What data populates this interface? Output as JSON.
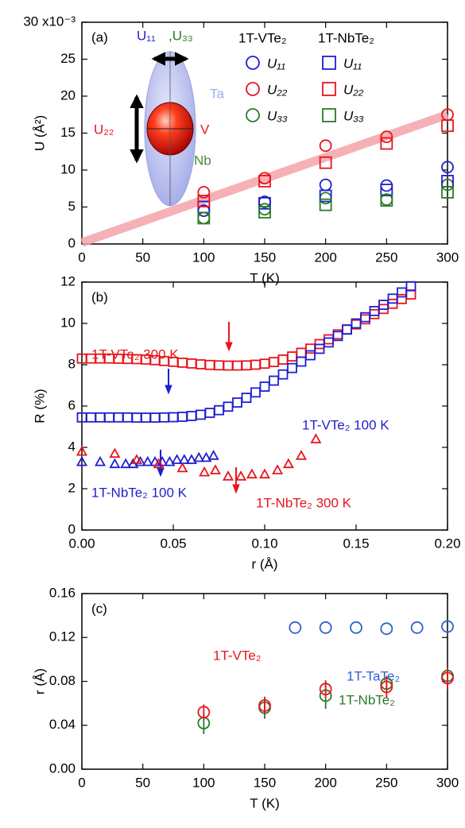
{
  "chart_data": [
    {
      "type": "scatter",
      "panel_label": "(a)",
      "xlabel": "T (K)",
      "ylabel": "U (Å²)",
      "xlim": [
        0,
        300
      ],
      "xticks": [
        0,
        50,
        100,
        150,
        200,
        250,
        300
      ],
      "ylim": [
        0,
        30
      ],
      "yticks": [
        0,
        5,
        10,
        15,
        20,
        25,
        {
          "value": 30,
          "label": "30 x10⁻³"
        }
      ],
      "legend_groups": [
        "1T-VTe₂",
        "1T-NbTe₂"
      ],
      "fit_line": {
        "x": [
          0,
          300
        ],
        "values": [
          0.2,
          17.5
        ],
        "color": "#f4a3aa"
      },
      "annotations": [
        {
          "text": "U₁₁",
          "color": "#1f1fd0"
        },
        {
          "text": ",U₃₃",
          "color": "#2a7a2a"
        },
        {
          "text": "U₂₂",
          "color": "#e8141c"
        },
        {
          "text": "Ta",
          "color": "#9aaee0"
        },
        {
          "text": "V",
          "color": "#e8141c"
        },
        {
          "text": "Nb",
          "color": "#4a8a3a"
        }
      ],
      "series": [
        {
          "name": "U₁₁",
          "group": 0,
          "marker": "circle",
          "color": "#1f1fd0",
          "x": [
            100,
            150,
            200,
            250,
            300
          ],
          "values": [
            4.5,
            5.7,
            8.0,
            7.9,
            10.4
          ]
        },
        {
          "name": "U₂₂",
          "group": 0,
          "marker": "circle",
          "color": "#e8141c",
          "x": [
            100,
            150,
            200,
            250,
            300
          ],
          "values": [
            7.0,
            8.9,
            13.3,
            14.5,
            17.5
          ]
        },
        {
          "name": "U₃₃",
          "group": 0,
          "marker": "circle",
          "color": "#2a7a2a",
          "x": [
            100,
            150,
            200,
            250,
            300
          ],
          "values": [
            3.5,
            4.7,
            6.2,
            6.0,
            8.0
          ]
        },
        {
          "name": "U₁₁",
          "group": 1,
          "marker": "square",
          "color": "#1f1fd0",
          "x": [
            100,
            150,
            200,
            250,
            300
          ],
          "values": [
            5.0,
            5.5,
            6.5,
            7.3,
            8.5
          ]
        },
        {
          "name": "U₂₂",
          "group": 1,
          "marker": "square",
          "color": "#e8141c",
          "x": [
            100,
            150,
            200,
            250,
            300
          ],
          "values": [
            5.8,
            8.5,
            11.0,
            13.6,
            16.0
          ]
        },
        {
          "name": "U₃₃",
          "group": 1,
          "marker": "square",
          "color": "#2a7a2a",
          "x": [
            100,
            150,
            200,
            250,
            300
          ],
          "values": [
            3.5,
            4.3,
            5.3,
            5.9,
            7.0
          ]
        }
      ]
    },
    {
      "type": "scatter",
      "panel_label": "(b)",
      "xlabel": "r (Å)",
      "ylabel": "R (%)",
      "xlim": [
        0,
        0.2
      ],
      "xticks": [
        {
          "value": 0,
          "label": "0.00"
        },
        {
          "value": 0.05,
          "label": "0.05"
        },
        {
          "value": 0.1,
          "label": "0.10"
        },
        {
          "value": 0.15,
          "label": "0.15"
        },
        {
          "value": 0.2,
          "label": "0.20"
        }
      ],
      "ylim": [
        0,
        12
      ],
      "yticks": [
        0,
        2,
        4,
        6,
        8,
        10,
        12
      ],
      "series": [
        {
          "name": "1T-VTe₂  300 K",
          "marker": "square",
          "color": "#e8141c",
          "x": [
            0,
            0.005,
            0.01,
            0.015,
            0.02,
            0.025,
            0.03,
            0.035,
            0.04,
            0.045,
            0.05,
            0.055,
            0.06,
            0.065,
            0.07,
            0.075,
            0.08,
            0.085,
            0.09,
            0.095,
            0.1,
            0.105,
            0.11,
            0.115,
            0.12,
            0.125,
            0.13,
            0.135,
            0.14,
            0.145,
            0.15,
            0.155,
            0.16,
            0.165,
            0.17,
            0.175,
            0.18
          ],
          "values": [
            8.3,
            8.3,
            8.3,
            8.3,
            8.29,
            8.28,
            8.27,
            8.25,
            8.22,
            8.18,
            8.14,
            8.1,
            8.06,
            8.02,
            7.99,
            7.97,
            7.96,
            7.96,
            7.97,
            8.0,
            8.05,
            8.13,
            8.25,
            8.4,
            8.58,
            8.78,
            9.0,
            9.23,
            9.47,
            9.71,
            9.95,
            10.2,
            10.45,
            10.7,
            10.95,
            11.18,
            11.4
          ]
        },
        {
          "name": "1T-VTe₂  100 K",
          "marker": "square",
          "color": "#1f1fd0",
          "x": [
            0,
            0.005,
            0.01,
            0.015,
            0.02,
            0.025,
            0.03,
            0.035,
            0.04,
            0.045,
            0.05,
            0.055,
            0.06,
            0.065,
            0.07,
            0.075,
            0.08,
            0.085,
            0.09,
            0.095,
            0.1,
            0.105,
            0.11,
            0.115,
            0.12,
            0.125,
            0.13,
            0.135,
            0.14,
            0.145,
            0.15,
            0.155,
            0.16,
            0.165,
            0.17,
            0.175,
            0.18
          ],
          "values": [
            5.45,
            5.45,
            5.45,
            5.45,
            5.45,
            5.45,
            5.44,
            5.44,
            5.44,
            5.45,
            5.46,
            5.48,
            5.52,
            5.58,
            5.67,
            5.8,
            5.97,
            6.17,
            6.4,
            6.66,
            6.94,
            7.23,
            7.53,
            7.84,
            8.15,
            8.46,
            8.77,
            9.08,
            9.39,
            9.7,
            10.0,
            10.3,
            10.6,
            10.9,
            11.2,
            11.5,
            11.8
          ]
        },
        {
          "name": "1T-NbTe₂  100 K",
          "marker": "triangle",
          "color": "#1f1fd0",
          "x": [
            0,
            0.01,
            0.018,
            0.024,
            0.028,
            0.032,
            0.036,
            0.04,
            0.044,
            0.048,
            0.052,
            0.056,
            0.06,
            0.064,
            0.068,
            0.072
          ],
          "values": [
            3.3,
            3.3,
            3.2,
            3.2,
            3.2,
            3.3,
            3.3,
            3.3,
            3.3,
            3.3,
            3.4,
            3.4,
            3.4,
            3.5,
            3.5,
            3.6
          ]
        },
        {
          "name": "1T-NbTe₂  300 K",
          "marker": "triangle",
          "color": "#e8141c",
          "x": [
            0,
            0.018,
            0.03,
            0.042,
            0.055,
            0.067,
            0.073,
            0.08,
            0.087,
            0.093,
            0.1,
            0.107,
            0.113,
            0.12,
            0.128
          ],
          "values": [
            3.8,
            3.7,
            3.4,
            3.2,
            3.0,
            2.8,
            2.9,
            2.6,
            2.6,
            2.7,
            2.7,
            2.9,
            3.2,
            3.6,
            4.4
          ]
        }
      ]
    },
    {
      "type": "scatter",
      "panel_label": "(c)",
      "xlabel": "T (K)",
      "ylabel": "r (Å)",
      "xlim": [
        0,
        300
      ],
      "xticks": [
        0,
        50,
        100,
        150,
        200,
        250,
        300
      ],
      "ylim": [
        0,
        0.16
      ],
      "yticks": [
        {
          "value": 0,
          "label": "0.00"
        },
        {
          "value": 0.04,
          "label": "0.04"
        },
        {
          "value": 0.08,
          "label": "0.08"
        },
        {
          "value": 0.12,
          "label": "0.12"
        },
        {
          "value": 0.16,
          "label": "0.16"
        }
      ],
      "series": [
        {
          "name": "1T-TaTe₂",
          "marker": "circle",
          "color": "#3060d0",
          "x": [
            175,
            200,
            225,
            250,
            275,
            300
          ],
          "values": [
            0.129,
            0.129,
            0.129,
            0.128,
            0.129,
            0.13
          ]
        },
        {
          "name": "1T-NbTe₂",
          "marker": "circle",
          "color": "#2a7a2a",
          "x": [
            100,
            150,
            200,
            250,
            300
          ],
          "values": [
            0.042,
            0.056,
            0.067,
            0.078,
            0.085
          ],
          "errors": [
            0.01,
            0.01,
            0.012,
            0.007,
            0.005
          ]
        },
        {
          "name": "1T-VTe₂",
          "marker": "circle",
          "color": "#e8141c",
          "x": [
            100,
            150,
            200,
            250,
            300
          ],
          "values": [
            0.052,
            0.058,
            0.073,
            0.075,
            0.083
          ],
          "errors": [
            0.007,
            0.008,
            0.008,
            0.01,
            0.01
          ]
        }
      ]
    }
  ]
}
